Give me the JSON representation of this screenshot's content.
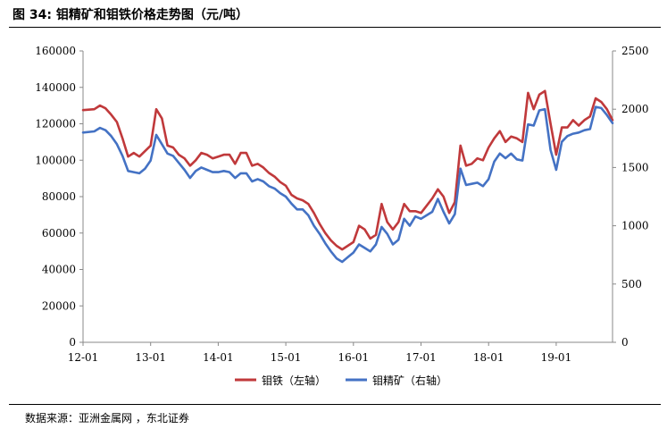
{
  "header": {
    "title": "图  34:  钼精矿和钼铁价格走势图（元/吨）"
  },
  "footer": {
    "source": "数据来源：亚洲金属网 ，东北证券"
  },
  "chart_data": {
    "type": "line",
    "title": "图  34:  钼精矿和钼铁价格走势图（元/吨）",
    "x_tick_labels": [
      "12-01",
      "13-01",
      "14-01",
      "15-01",
      "16-01",
      "17-01",
      "18-01",
      "19-01"
    ],
    "y_left": {
      "min": 0,
      "max": 160000,
      "ticks": [
        0,
        20000,
        40000,
        60000,
        80000,
        100000,
        120000,
        140000,
        160000
      ]
    },
    "y_right": {
      "min": 0,
      "max": 2500,
      "ticks": [
        0,
        500,
        1000,
        1500,
        2000,
        2500
      ]
    },
    "grid": false,
    "legend_position": "bottom",
    "series": [
      {
        "name": "钼铁（左轴）",
        "axis": "left",
        "color": "#C0393B",
        "points": [
          [
            "2012-01",
            127500
          ],
          [
            "2012-03",
            128000
          ],
          [
            "2012-04",
            130000
          ],
          [
            "2012-05",
            128500
          ],
          [
            "2012-06",
            125000
          ],
          [
            "2012-07",
            121000
          ],
          [
            "2012-08",
            112000
          ],
          [
            "2012-09",
            102000
          ],
          [
            "2012-10",
            104000
          ],
          [
            "2012-11",
            102000
          ],
          [
            "2012-12",
            105000
          ],
          [
            "2013-01",
            108000
          ],
          [
            "2013-02",
            128000
          ],
          [
            "2013-03",
            123000
          ],
          [
            "2013-04",
            108000
          ],
          [
            "2013-05",
            107000
          ],
          [
            "2013-06",
            103000
          ],
          [
            "2013-07",
            101000
          ],
          [
            "2013-08",
            97000
          ],
          [
            "2013-09",
            100000
          ],
          [
            "2013-10",
            104000
          ],
          [
            "2013-11",
            103000
          ],
          [
            "2013-12",
            101000
          ],
          [
            "2014-01",
            102000
          ],
          [
            "2014-02",
            103000
          ],
          [
            "2014-03",
            103000
          ],
          [
            "2014-04",
            98000
          ],
          [
            "2014-05",
            104000
          ],
          [
            "2014-06",
            104000
          ],
          [
            "2014-07",
            97000
          ],
          [
            "2014-08",
            98000
          ],
          [
            "2014-09",
            96000
          ],
          [
            "2014-10",
            93000
          ],
          [
            "2014-11",
            91000
          ],
          [
            "2014-12",
            88000
          ],
          [
            "2015-01",
            86000
          ],
          [
            "2015-02",
            81000
          ],
          [
            "2015-03",
            79000
          ],
          [
            "2015-04",
            78000
          ],
          [
            "2015-05",
            76000
          ],
          [
            "2015-06",
            71000
          ],
          [
            "2015-07",
            65000
          ],
          [
            "2015-08",
            60000
          ],
          [
            "2015-09",
            56000
          ],
          [
            "2015-10",
            53000
          ],
          [
            "2015-11",
            51000
          ],
          [
            "2015-12",
            53000
          ],
          [
            "2016-01",
            55000
          ],
          [
            "2016-02",
            64000
          ],
          [
            "2016-03",
            62000
          ],
          [
            "2016-04",
            57000
          ],
          [
            "2016-05",
            59000
          ],
          [
            "2016-06",
            76000
          ],
          [
            "2016-07",
            66000
          ],
          [
            "2016-08",
            62000
          ],
          [
            "2016-09",
            66000
          ],
          [
            "2016-10",
            76000
          ],
          [
            "2016-11",
            72000
          ],
          [
            "2016-12",
            72000
          ],
          [
            "2017-01",
            71000
          ],
          [
            "2017-02",
            75000
          ],
          [
            "2017-03",
            79000
          ],
          [
            "2017-04",
            84000
          ],
          [
            "2017-05",
            80000
          ],
          [
            "2017-06",
            71000
          ],
          [
            "2017-07",
            77000
          ],
          [
            "2017-08",
            108000
          ],
          [
            "2017-09",
            97000
          ],
          [
            "2017-10",
            98000
          ],
          [
            "2017-11",
            101000
          ],
          [
            "2017-12",
            100000
          ],
          [
            "2018-01",
            107000
          ],
          [
            "2018-02",
            112000
          ],
          [
            "2018-03",
            116000
          ],
          [
            "2018-04",
            110000
          ],
          [
            "2018-05",
            113000
          ],
          [
            "2018-06",
            112000
          ],
          [
            "2018-07",
            110000
          ],
          [
            "2018-08",
            137000
          ],
          [
            "2018-09",
            128000
          ],
          [
            "2018-10",
            136000
          ],
          [
            "2018-11",
            138000
          ],
          [
            "2018-12",
            120000
          ],
          [
            "2019-01",
            103000
          ],
          [
            "2019-02",
            118000
          ],
          [
            "2019-03",
            118000
          ],
          [
            "2019-04",
            122000
          ],
          [
            "2019-05",
            119000
          ],
          [
            "2019-06",
            122000
          ],
          [
            "2019-07",
            124000
          ],
          [
            "2019-08",
            134000
          ],
          [
            "2019-09",
            132000
          ],
          [
            "2019-10",
            128000
          ],
          [
            "2019-11",
            122000
          ]
        ]
      },
      {
        "name": "钼精矿（右轴）",
        "axis": "right",
        "color": "#4472C4",
        "points": [
          [
            "2012-01",
            1800
          ],
          [
            "2012-03",
            1810
          ],
          [
            "2012-04",
            1840
          ],
          [
            "2012-05",
            1820
          ],
          [
            "2012-06",
            1770
          ],
          [
            "2012-07",
            1700
          ],
          [
            "2012-08",
            1600
          ],
          [
            "2012-09",
            1470
          ],
          [
            "2012-10",
            1460
          ],
          [
            "2012-11",
            1450
          ],
          [
            "2012-12",
            1490
          ],
          [
            "2013-01",
            1560
          ],
          [
            "2013-02",
            1780
          ],
          [
            "2013-03",
            1700
          ],
          [
            "2013-04",
            1620
          ],
          [
            "2013-05",
            1600
          ],
          [
            "2013-06",
            1540
          ],
          [
            "2013-07",
            1480
          ],
          [
            "2013-08",
            1410
          ],
          [
            "2013-09",
            1470
          ],
          [
            "2013-10",
            1500
          ],
          [
            "2013-11",
            1480
          ],
          [
            "2013-12",
            1460
          ],
          [
            "2014-01",
            1460
          ],
          [
            "2014-02",
            1470
          ],
          [
            "2014-03",
            1460
          ],
          [
            "2014-04",
            1410
          ],
          [
            "2014-05",
            1450
          ],
          [
            "2014-06",
            1450
          ],
          [
            "2014-07",
            1380
          ],
          [
            "2014-08",
            1400
          ],
          [
            "2014-09",
            1380
          ],
          [
            "2014-10",
            1340
          ],
          [
            "2014-11",
            1320
          ],
          [
            "2014-12",
            1280
          ],
          [
            "2015-01",
            1250
          ],
          [
            "2015-02",
            1190
          ],
          [
            "2015-03",
            1140
          ],
          [
            "2015-04",
            1140
          ],
          [
            "2015-05",
            1090
          ],
          [
            "2015-06",
            1000
          ],
          [
            "2015-07",
            930
          ],
          [
            "2015-08",
            850
          ],
          [
            "2015-09",
            780
          ],
          [
            "2015-10",
            720
          ],
          [
            "2015-11",
            690
          ],
          [
            "2015-12",
            730
          ],
          [
            "2016-01",
            770
          ],
          [
            "2016-02",
            840
          ],
          [
            "2016-03",
            810
          ],
          [
            "2016-04",
            780
          ],
          [
            "2016-05",
            840
          ],
          [
            "2016-06",
            990
          ],
          [
            "2016-07",
            930
          ],
          [
            "2016-08",
            840
          ],
          [
            "2016-09",
            880
          ],
          [
            "2016-10",
            1060
          ],
          [
            "2016-11",
            1000
          ],
          [
            "2016-12",
            1080
          ],
          [
            "2017-01",
            1060
          ],
          [
            "2017-02",
            1090
          ],
          [
            "2017-03",
            1120
          ],
          [
            "2017-04",
            1230
          ],
          [
            "2017-05",
            1120
          ],
          [
            "2017-06",
            1020
          ],
          [
            "2017-07",
            1100
          ],
          [
            "2017-08",
            1490
          ],
          [
            "2017-09",
            1350
          ],
          [
            "2017-10",
            1360
          ],
          [
            "2017-11",
            1370
          ],
          [
            "2017-12",
            1340
          ],
          [
            "2018-01",
            1400
          ],
          [
            "2018-02",
            1550
          ],
          [
            "2018-03",
            1620
          ],
          [
            "2018-04",
            1580
          ],
          [
            "2018-05",
            1620
          ],
          [
            "2018-06",
            1570
          ],
          [
            "2018-07",
            1560
          ],
          [
            "2018-08",
            1870
          ],
          [
            "2018-09",
            1860
          ],
          [
            "2018-10",
            1990
          ],
          [
            "2018-11",
            2000
          ],
          [
            "2018-12",
            1650
          ],
          [
            "2019-01",
            1480
          ],
          [
            "2019-02",
            1720
          ],
          [
            "2019-03",
            1770
          ],
          [
            "2019-04",
            1790
          ],
          [
            "2019-05",
            1800
          ],
          [
            "2019-06",
            1820
          ],
          [
            "2019-07",
            1830
          ],
          [
            "2019-08",
            2020
          ],
          [
            "2019-09",
            2010
          ],
          [
            "2019-10",
            1950
          ],
          [
            "2019-11",
            1880
          ]
        ]
      }
    ]
  }
}
